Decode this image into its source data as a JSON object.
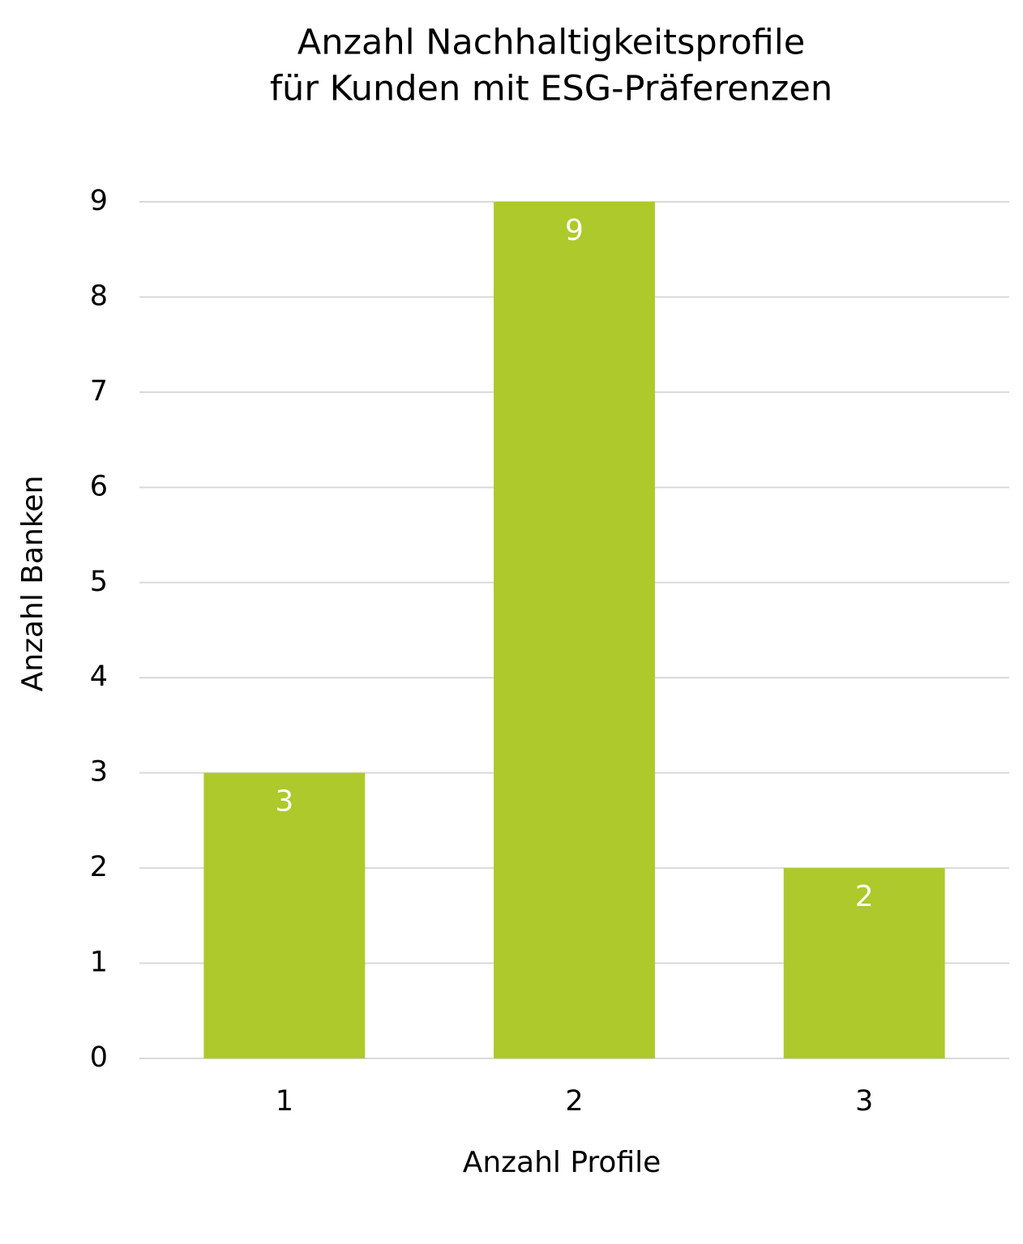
{
  "chart_data": {
    "type": "bar",
    "title": [
      "Anzahl Nachhaltigkeitsprofile",
      "für Kunden mit ESG-Präferenzen"
    ],
    "x_label": "Anzahl Profile",
    "y_label": "Anzahl Banken",
    "categories": [
      "1",
      "2",
      "3"
    ],
    "values": [
      3,
      9,
      2
    ],
    "color": "#adc92b",
    "ylim": [
      0,
      9
    ],
    "yticks": [
      0,
      1,
      2,
      3,
      4,
      5,
      6,
      7,
      8,
      9
    ],
    "grid": true
  }
}
